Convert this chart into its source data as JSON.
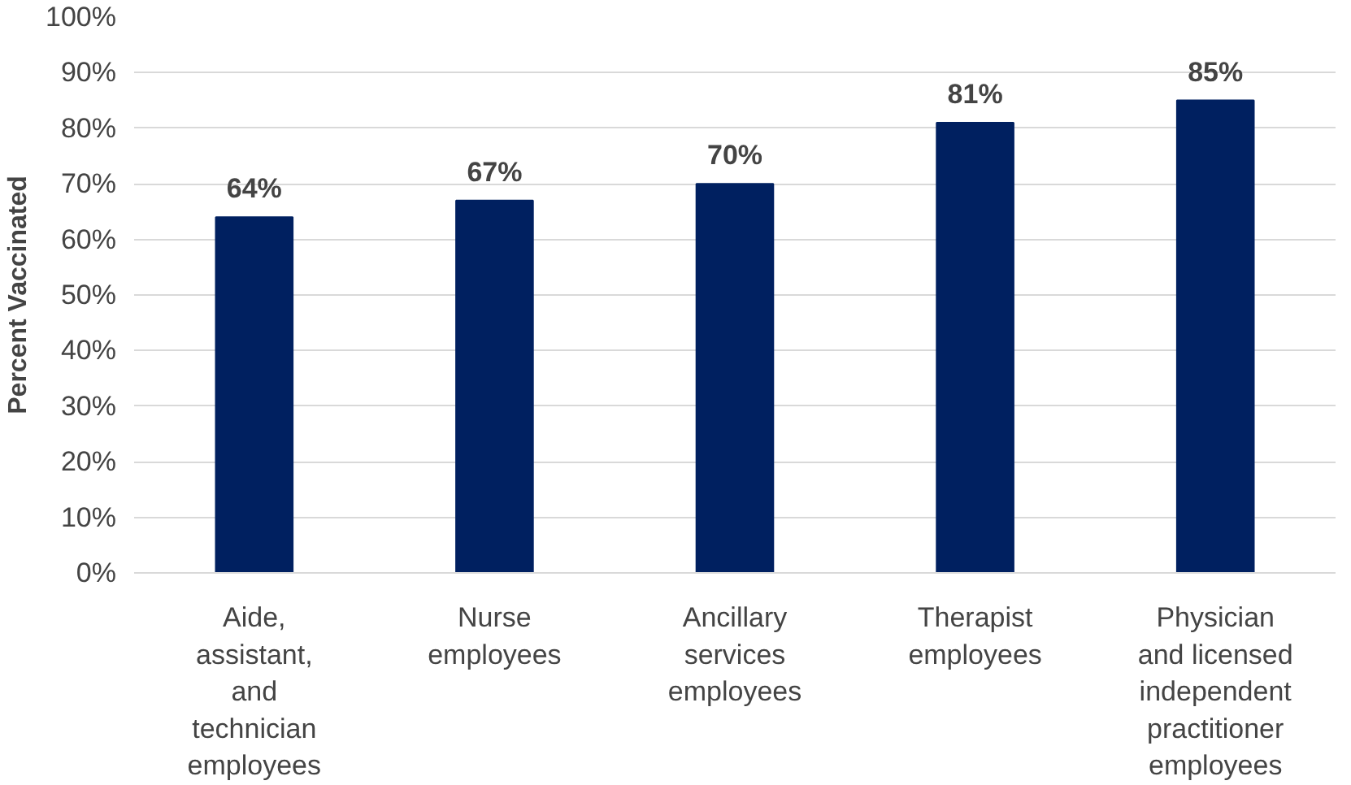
{
  "chart_data": {
    "type": "bar",
    "ylabel": "Percent Vaccinated",
    "categories": [
      "Aide, assistant, and technician employees",
      "Nurse employees",
      "Ancillary services employees",
      "Therapist employees",
      "Physician and licensed independent practitioner employees"
    ],
    "values": [
      64,
      67,
      70,
      81,
      85
    ],
    "value_labels": [
      "64%",
      "67%",
      "70%",
      "81%",
      "85%"
    ],
    "color": "#002060",
    "ylim": [
      0,
      100
    ],
    "yticks": [
      {
        "value": 0,
        "label": "0%"
      },
      {
        "value": 10,
        "label": "10%"
      },
      {
        "value": 20,
        "label": "20%"
      },
      {
        "value": 30,
        "label": "30%"
      },
      {
        "value": 40,
        "label": "40%"
      },
      {
        "value": 50,
        "label": "50%"
      },
      {
        "value": 60,
        "label": "60%"
      },
      {
        "value": 70,
        "label": "70%"
      },
      {
        "value": 80,
        "label": "80%"
      },
      {
        "value": 90,
        "label": "90%"
      },
      {
        "value": 100,
        "label": "100%"
      }
    ],
    "grid": "y"
  }
}
